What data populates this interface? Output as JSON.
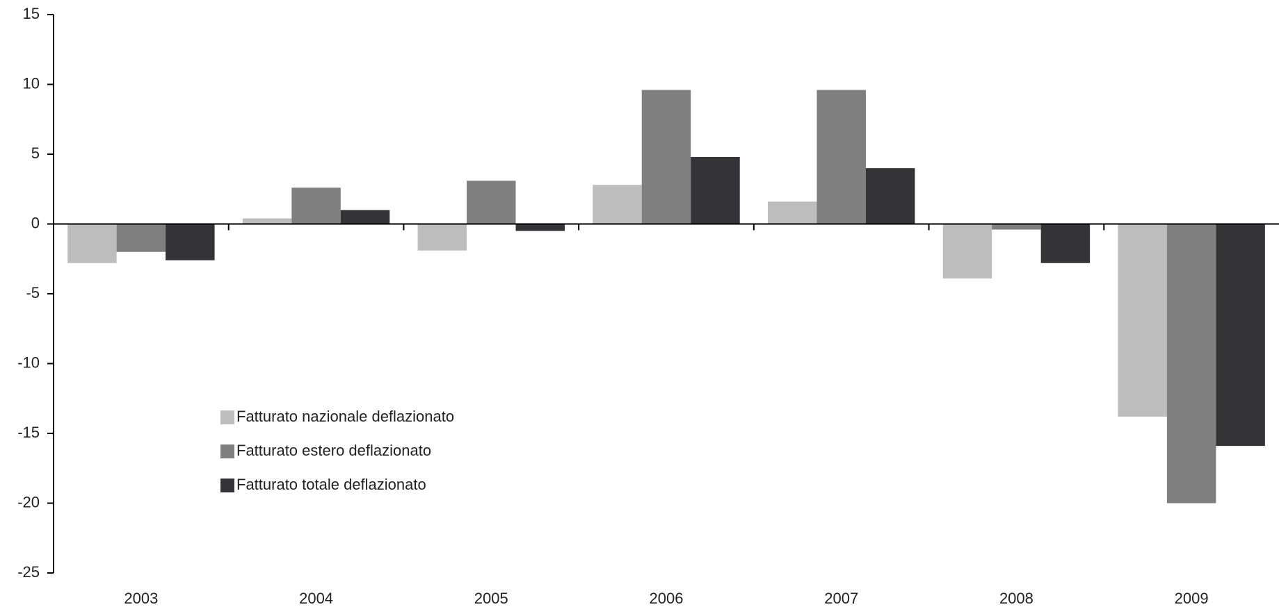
{
  "chart_data": {
    "type": "bar",
    "categories": [
      "2003",
      "2004",
      "2005",
      "2006",
      "2007",
      "2008",
      "2009"
    ],
    "series": [
      {
        "name": "Fatturato nazionale deflazionato",
        "color": "#bdbdbd",
        "values": [
          -2.8,
          0.4,
          -1.9,
          2.8,
          1.6,
          -3.9,
          -13.8
        ]
      },
      {
        "name": "Fatturato estero deflazionato",
        "color": "#7f7f7f",
        "values": [
          -2.0,
          2.6,
          3.1,
          9.6,
          9.6,
          -0.4,
          -20.0
        ]
      },
      {
        "name": "Fatturato totale deflazionato",
        "color": "#343336",
        "values": [
          -2.6,
          1.0,
          -0.5,
          4.8,
          4.0,
          -2.8,
          -15.9
        ]
      }
    ],
    "ylim": [
      -25,
      15
    ],
    "yticks": [
      -25,
      -20,
      -15,
      -10,
      -5,
      0,
      5,
      10,
      15
    ],
    "grid": false
  }
}
